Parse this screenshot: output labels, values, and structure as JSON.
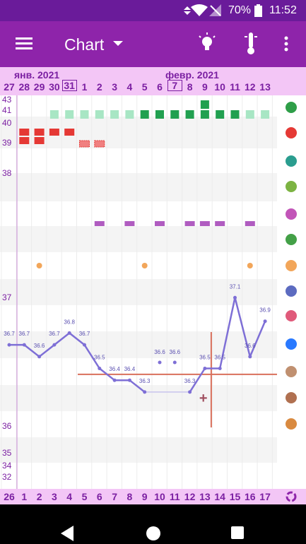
{
  "status_bar": {
    "battery": "70%",
    "time": "11:52",
    "icons": [
      "vibrate-icon",
      "wifi-icon",
      "no-signal-icon",
      "battery-icon"
    ]
  },
  "app_bar": {
    "title": "Chart",
    "icons": [
      "menu-icon",
      "dropdown-icon",
      "lightbulb-icon",
      "thermometer-icon",
      "more-icon"
    ]
  },
  "header": {
    "month_left": "янв. 2021",
    "month_right": "февр. 2021",
    "days": [
      "27",
      "28",
      "29",
      "30",
      "31",
      "1",
      "2",
      "3",
      "4",
      "5",
      "6",
      "7",
      "8",
      "9",
      "10",
      "11",
      "12",
      "13"
    ],
    "boxed_days": [
      "31",
      "7"
    ]
  },
  "footer": {
    "cycle_days": [
      "26",
      "1",
      "2",
      "3",
      "4",
      "5",
      "6",
      "7",
      "8",
      "9",
      "10",
      "11",
      "12",
      "13",
      "14",
      "15",
      "16",
      "17"
    ]
  },
  "axis_labels": [
    "43",
    "41",
    "40",
    "39",
    "38",
    "37",
    "36",
    "35",
    "34",
    "32"
  ],
  "side_icons": [
    "flower-icon",
    "drop-icon",
    "splash-icon",
    "cervix-icon",
    "heart-icon",
    "leaf-icon",
    "pill-icon",
    "smile-icon",
    "pain-icon",
    "note-icon",
    "ovulation-test-icon",
    "settings-flower-icon",
    "mood-icon",
    "cycle-icon"
  ],
  "colors": {
    "accent": "#8e24aa",
    "status": "#6a1b9a",
    "line": "#7e6fd6",
    "fertile_light": "#a8e6c4",
    "fertile_dark": "#21a050",
    "period": "#e53935",
    "sex": "#b05cc0",
    "pill": "#f2a65a",
    "coverline": "#d9705c"
  },
  "chart_data": {
    "type": "line",
    "x": [
      "27",
      "28",
      "29",
      "30",
      "31",
      "1",
      "2",
      "3",
      "4",
      "5",
      "6",
      "7",
      "8",
      "9",
      "10",
      "11",
      "12",
      "13"
    ],
    "series": [
      {
        "values": [
          36.7,
          36.7,
          36.6,
          36.7,
          36.8,
          36.7,
          36.5,
          36.4,
          36.4,
          36.3,
          null,
          null,
          36.3,
          36.5,
          36.5,
          37.1,
          36.6,
          36.9
        ],
        "labels": [
          "36.7",
          "36.7",
          "36.6",
          "36.7",
          "36.8",
          "36.7",
          "36.5",
          "36.4",
          "36.4",
          "36.3",
          "36.6",
          "36.6",
          "36.3",
          "36.5",
          "36.5",
          "37.1",
          "36.6",
          "36.9"
        ]
      }
    ],
    "ylim": [
      32,
      43
    ],
    "coverline": 36.45
  }
}
